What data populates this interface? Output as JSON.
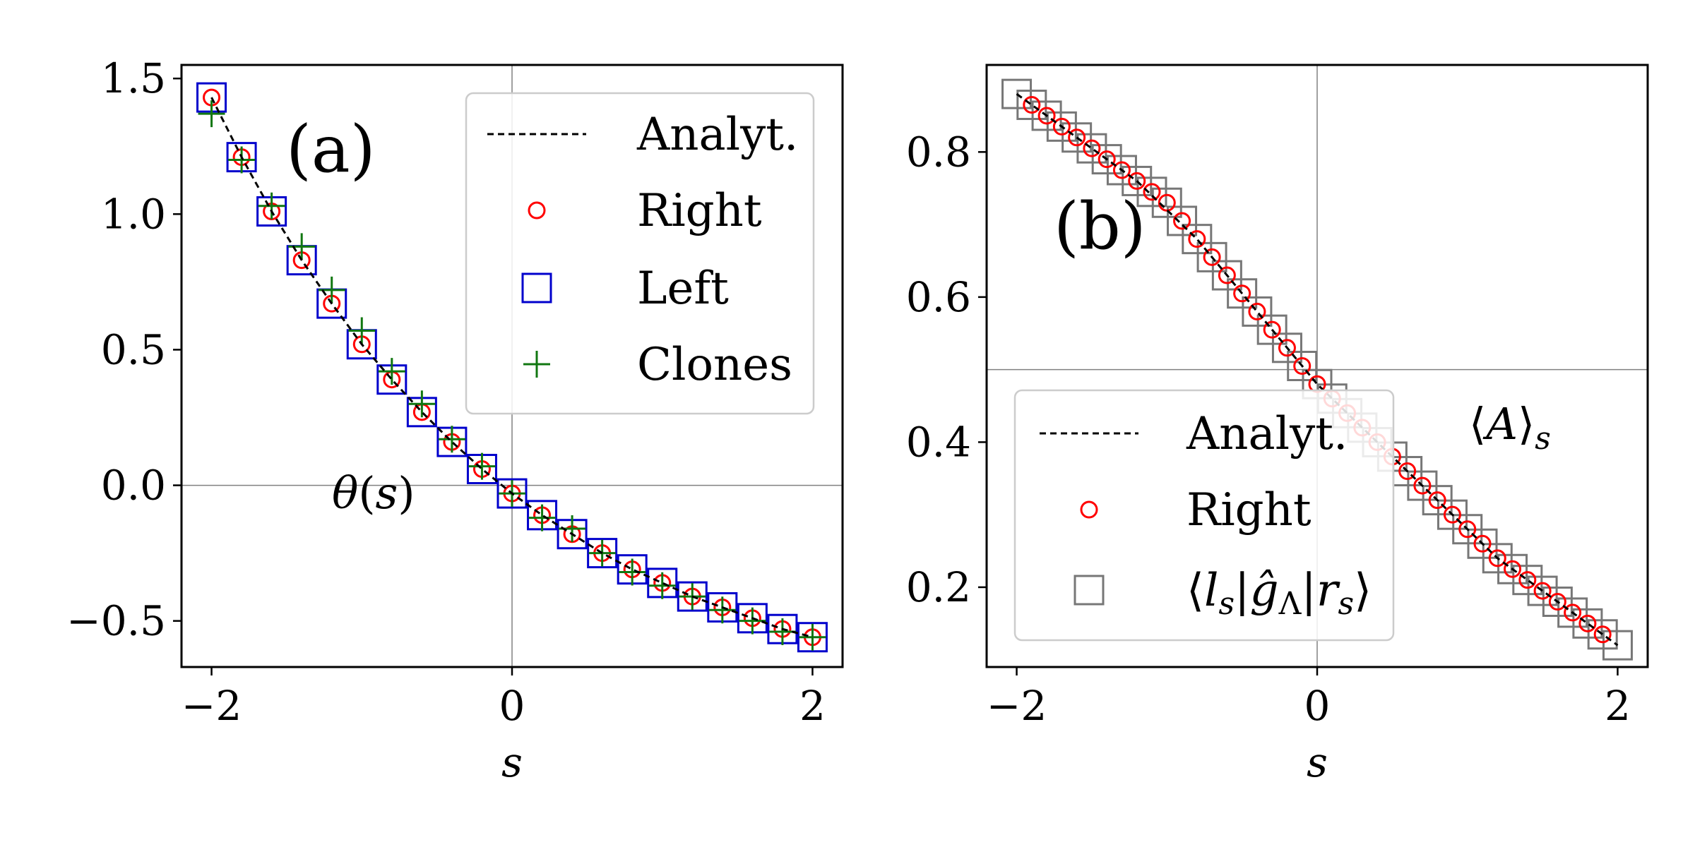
{
  "chart_data": [
    {
      "type": "line",
      "panel_label": "(a)",
      "annotation": "θ(s)",
      "xlabel": "s",
      "ylabel": "",
      "xlim": [
        -2.2,
        2.2
      ],
      "ylim": [
        -0.67,
        1.55
      ],
      "xticks": [
        -2,
        0,
        2
      ],
      "xtick_labels": [
        "−2",
        "0",
        "2"
      ],
      "yticks": [
        -0.5,
        0.0,
        0.5,
        1.0,
        1.5
      ],
      "ytick_labels": [
        "−0.5",
        "0.0",
        "0.5",
        "1.0",
        "1.5"
      ],
      "reference_lines": {
        "x": 0,
        "y": 0
      },
      "legend_position": "upper right",
      "series": [
        {
          "name": "Analyt.",
          "style": "dashed-line",
          "color": "#000000",
          "x": [
            -2.0,
            -1.8,
            -1.6,
            -1.4,
            -1.2,
            -1.0,
            -0.8,
            -0.6,
            -0.4,
            -0.2,
            0.0,
            0.2,
            0.4,
            0.6,
            0.8,
            1.0,
            1.2,
            1.4,
            1.6,
            1.8,
            2.0
          ],
          "y": [
            1.43,
            1.21,
            1.01,
            0.83,
            0.67,
            0.52,
            0.39,
            0.27,
            0.16,
            0.06,
            -0.03,
            -0.11,
            -0.18,
            -0.25,
            -0.31,
            -0.36,
            -0.41,
            -0.45,
            -0.49,
            -0.53,
            -0.56
          ]
        },
        {
          "name": "Right",
          "style": "circle",
          "color": "#ff0000",
          "x": [
            -2.0,
            -1.8,
            -1.6,
            -1.4,
            -1.2,
            -1.0,
            -0.8,
            -0.6,
            -0.4,
            -0.2,
            0.0,
            0.2,
            0.4,
            0.6,
            0.8,
            1.0,
            1.2,
            1.4,
            1.6,
            1.8,
            2.0
          ],
          "y": [
            1.43,
            1.21,
            1.01,
            0.83,
            0.67,
            0.52,
            0.39,
            0.27,
            0.16,
            0.06,
            -0.03,
            -0.11,
            -0.18,
            -0.25,
            -0.31,
            -0.36,
            -0.41,
            -0.45,
            -0.49,
            -0.53,
            -0.56
          ]
        },
        {
          "name": "Left",
          "style": "square",
          "color": "#0000cc",
          "x": [
            -2.0,
            -1.8,
            -1.6,
            -1.4,
            -1.2,
            -1.0,
            -0.8,
            -0.6,
            -0.4,
            -0.2,
            0.0,
            0.2,
            0.4,
            0.6,
            0.8,
            1.0,
            1.2,
            1.4,
            1.6,
            1.8,
            2.0
          ],
          "y": [
            1.43,
            1.21,
            1.01,
            0.83,
            0.67,
            0.52,
            0.39,
            0.27,
            0.16,
            0.06,
            -0.03,
            -0.11,
            -0.18,
            -0.25,
            -0.31,
            -0.36,
            -0.41,
            -0.45,
            -0.49,
            -0.53,
            -0.56
          ]
        },
        {
          "name": "Clones",
          "style": "plus",
          "color": "#117711",
          "x": [
            -2.0,
            -1.8,
            -1.6,
            -1.4,
            -1.2,
            -1.0,
            -0.8,
            -0.6,
            -0.4,
            -0.2,
            0.0,
            0.2,
            0.4,
            0.6,
            0.8,
            1.0,
            1.2,
            1.4,
            1.6,
            1.8,
            2.0
          ],
          "y": [
            1.37,
            1.2,
            1.03,
            0.88,
            0.72,
            0.57,
            0.42,
            0.3,
            0.17,
            0.07,
            -0.03,
            -0.12,
            -0.16,
            -0.25,
            -0.32,
            -0.37,
            -0.41,
            -0.46,
            -0.5,
            -0.54,
            -0.56
          ]
        }
      ]
    },
    {
      "type": "line",
      "panel_label": "(b)",
      "annotation": "⟨A⟩s",
      "xlabel": "s",
      "ylabel": "",
      "xlim": [
        -2.2,
        2.2
      ],
      "ylim": [
        0.09,
        0.92
      ],
      "xticks": [
        -2,
        0,
        2
      ],
      "xtick_labels": [
        "−2",
        "0",
        "2"
      ],
      "yticks": [
        0.2,
        0.4,
        0.6,
        0.8
      ],
      "ytick_labels": [
        "0.2",
        "0.4",
        "0.6",
        "0.8"
      ],
      "reference_lines": {
        "x": 0,
        "y": 0.5
      },
      "legend_position": "lower left",
      "series": [
        {
          "name": "Analyt.",
          "style": "dashed-line",
          "color": "#000000",
          "x": [
            -2.0,
            -1.8,
            -1.6,
            -1.4,
            -1.2,
            -1.0,
            -0.8,
            -0.6,
            -0.4,
            -0.2,
            0.0,
            0.2,
            0.4,
            0.6,
            0.8,
            1.0,
            1.2,
            1.4,
            1.6,
            1.8,
            2.0
          ],
          "y": [
            0.88,
            0.85,
            0.82,
            0.79,
            0.76,
            0.72,
            0.68,
            0.63,
            0.58,
            0.53,
            0.48,
            0.44,
            0.4,
            0.36,
            0.32,
            0.28,
            0.24,
            0.21,
            0.18,
            0.15,
            0.12
          ]
        },
        {
          "name": "Right",
          "style": "circle",
          "color": "#ff0000",
          "x": [
            -1.9,
            -1.8,
            -1.7,
            -1.6,
            -1.5,
            -1.4,
            -1.3,
            -1.2,
            -1.1,
            -1.0,
            -0.9,
            -0.8,
            -0.7,
            -0.6,
            -0.5,
            -0.4,
            -0.3,
            -0.2,
            -0.1,
            0.0,
            0.1,
            0.2,
            0.3,
            0.4,
            0.5,
            0.6,
            0.7,
            0.8,
            0.9,
            1.0,
            1.1,
            1.2,
            1.3,
            1.4,
            1.5,
            1.6,
            1.7,
            1.8,
            1.9
          ],
          "y": [
            0.865,
            0.85,
            0.835,
            0.82,
            0.805,
            0.79,
            0.775,
            0.76,
            0.745,
            0.73,
            0.705,
            0.68,
            0.655,
            0.63,
            0.605,
            0.58,
            0.555,
            0.53,
            0.505,
            0.48,
            0.46,
            0.44,
            0.42,
            0.4,
            0.38,
            0.36,
            0.34,
            0.32,
            0.3,
            0.28,
            0.26,
            0.24,
            0.225,
            0.21,
            0.195,
            0.18,
            0.165,
            0.15,
            0.135
          ]
        },
        {
          "name": "⟨ls|ĝΛ|rs⟩",
          "style": "square",
          "color": "#777777",
          "x": [
            -2.0,
            -1.9,
            -1.8,
            -1.7,
            -1.6,
            -1.5,
            -1.4,
            -1.3,
            -1.2,
            -1.1,
            -1.0,
            -0.9,
            -0.8,
            -0.7,
            -0.6,
            -0.5,
            -0.4,
            -0.3,
            -0.2,
            -0.1,
            0.0,
            0.1,
            0.2,
            0.3,
            0.4,
            0.5,
            0.6,
            0.7,
            0.8,
            0.9,
            1.0,
            1.1,
            1.2,
            1.3,
            1.4,
            1.5,
            1.6,
            1.7,
            1.8,
            1.9,
            2.0
          ],
          "y": [
            0.88,
            0.865,
            0.85,
            0.835,
            0.82,
            0.805,
            0.79,
            0.775,
            0.76,
            0.745,
            0.73,
            0.705,
            0.68,
            0.655,
            0.63,
            0.605,
            0.58,
            0.555,
            0.53,
            0.505,
            0.48,
            0.46,
            0.44,
            0.42,
            0.4,
            0.38,
            0.36,
            0.34,
            0.32,
            0.3,
            0.28,
            0.26,
            0.24,
            0.225,
            0.21,
            0.195,
            0.18,
            0.165,
            0.15,
            0.135,
            0.12
          ]
        }
      ]
    }
  ]
}
